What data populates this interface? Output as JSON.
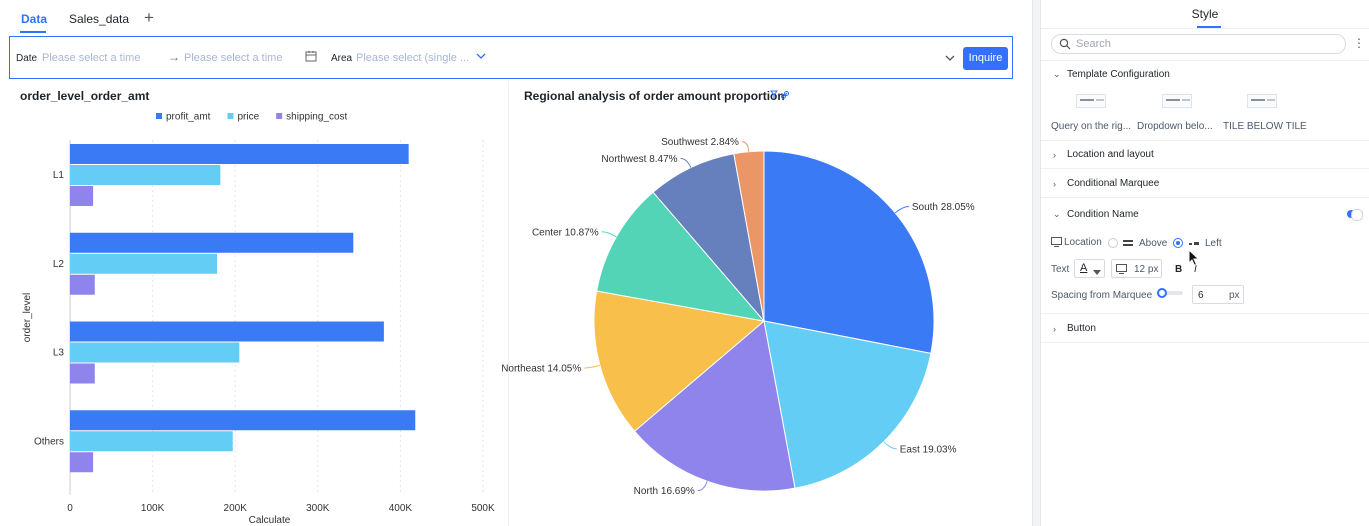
{
  "tabs": [
    {
      "label": "Data"
    },
    {
      "label": "Sales_data"
    }
  ],
  "filter": {
    "date_label": "Date",
    "date_start_placeholder": "Please select a time",
    "date_end_placeholder": "Please select a time",
    "area_label": "Area",
    "area_placeholder": "Please select (single ...",
    "inquire_label": "Inquire"
  },
  "bar_panel": {
    "title": "order_level_order_amt"
  },
  "pie_panel": {
    "title": "Regional analysis of order amount proportion"
  },
  "chart_data": [
    {
      "type": "bar",
      "orientation": "horizontal",
      "title": "order_level_order_amt",
      "categories": [
        "L1",
        "L2",
        "L3",
        "Others"
      ],
      "series": [
        {
          "name": "profit_amt",
          "color": "#3a7af5",
          "values": [
            410000,
            343000,
            380000,
            418000
          ]
        },
        {
          "name": "price",
          "color": "#63cdf5",
          "values": [
            182000,
            178000,
            205000,
            197000
          ]
        },
        {
          "name": "shipping_cost",
          "color": "#8f84ec",
          "values": [
            28000,
            30000,
            30000,
            28000
          ]
        }
      ],
      "xlabel": "Calculate",
      "ylabel": "order_level",
      "xlim": [
        0,
        500000
      ],
      "xticks": [
        "0",
        "100K",
        "200K",
        "300K",
        "400K",
        "500K"
      ],
      "legend": "top-center"
    },
    {
      "type": "pie",
      "title": "Regional analysis of order amount proportion",
      "slices": [
        {
          "label": "South",
          "value": 28.05,
          "text": "South 28.05%",
          "color": "#3a7af5"
        },
        {
          "label": "East",
          "value": 19.03,
          "text": "East 19.03%",
          "color": "#63cdf5"
        },
        {
          "label": "North",
          "value": 16.69,
          "text": "North 16.69%",
          "color": "#8f84ec"
        },
        {
          "label": "Northeast",
          "value": 14.05,
          "text": "Northeast 14.05%",
          "color": "#f8bf4b"
        },
        {
          "label": "Center",
          "value": 10.87,
          "text": "Center 10.87%",
          "color": "#53d4b6"
        },
        {
          "label": "Northwest",
          "value": 8.47,
          "text": "Northwest 8.47%",
          "color": "#6680bd"
        },
        {
          "label": "Southwest",
          "value": 2.84,
          "text": "Southwest 2.84%",
          "color": "#eb9667"
        }
      ]
    }
  ],
  "style_panel": {
    "title": "Style",
    "search_placeholder": "Search",
    "template_configuration": "Template Configuration",
    "templates": [
      {
        "label": "Query on the rig..."
      },
      {
        "label": "Dropdown belo..."
      },
      {
        "label": "TILE BELOW TILE"
      }
    ],
    "location_and_layout": "Location and layout",
    "conditional_marquee": "Conditional Marquee",
    "condition_name": "Condition Name",
    "location_label": "Location",
    "above_label": "Above",
    "left_label": "Left",
    "text_label": "Text",
    "font_color_glyph": "A",
    "font_size": "12 px",
    "bold_glyph": "B",
    "italic_glyph": "I",
    "spacing_label": "Spacing from Marquee",
    "spacing_value": "6",
    "spacing_unit": "px",
    "button_section": "Button"
  }
}
